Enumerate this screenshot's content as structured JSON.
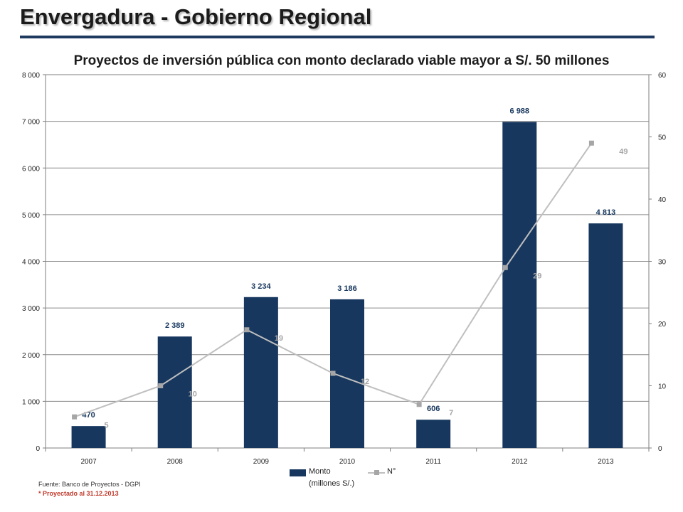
{
  "page": {
    "title": "Envergadura - Gobierno Regional",
    "source": "Fuente: Banco de Proyectos - DGPI",
    "note": "* Proyectado al 31.12.2013"
  },
  "chart_data": {
    "type": "bar",
    "title": "Proyectos de inversión pública con monto declarado viable mayor a S/. 50 millones",
    "categories": [
      "2007",
      "2008",
      "2009",
      "2010",
      "2011",
      "2012",
      "2013"
    ],
    "series": [
      {
        "name": "Monto",
        "name_line2": "(millones S/.)",
        "type": "bar",
        "axis": "left",
        "color": "#17375e",
        "values": [
          470,
          2389,
          3234,
          3186,
          606,
          6988,
          4813
        ],
        "labels": [
          "470",
          "2 389",
          "3 234",
          "3 186",
          "606",
          "6 988",
          "4 813"
        ]
      },
      {
        "name": "N°",
        "type": "line",
        "axis": "right",
        "color": "#bfbfbf",
        "marker_color": "#a6a6a6",
        "values": [
          5,
          10,
          19,
          12,
          7,
          29,
          49
        ],
        "labels": [
          "5",
          "10",
          "19",
          "12",
          "7",
          "29",
          "49"
        ]
      }
    ],
    "y_left": {
      "ylim": [
        0,
        8000
      ],
      "ticks": [
        0,
        1000,
        2000,
        3000,
        4000,
        5000,
        6000,
        7000,
        8000
      ],
      "tick_labels": [
        "0",
        "1 000",
        "2 000",
        "3 000",
        "4 000",
        "5 000",
        "6 000",
        "7 000",
        "8 000"
      ]
    },
    "y_right": {
      "ylim": [
        0,
        60
      ],
      "ticks": [
        0,
        10,
        20,
        30,
        40,
        50,
        60
      ],
      "tick_labels": [
        "0",
        "10",
        "20",
        "30",
        "40",
        "50",
        "60"
      ]
    },
    "grid": true,
    "legend": "bottom"
  }
}
